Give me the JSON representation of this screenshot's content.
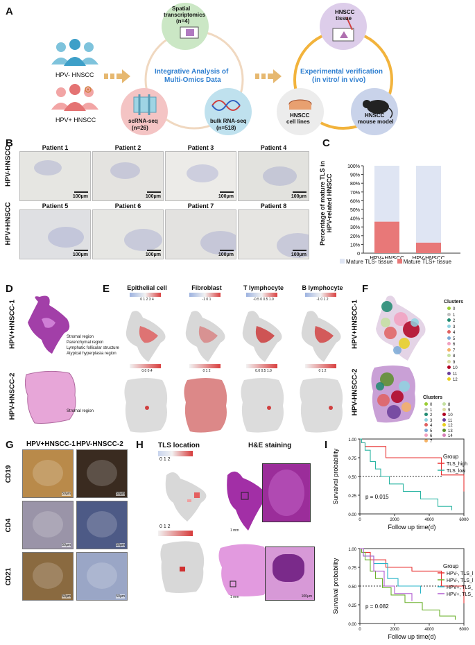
{
  "panels": {
    "A": "A",
    "B": "B",
    "C": "C",
    "D": "D",
    "E": "E",
    "F": "F",
    "G": "G",
    "H": "H",
    "I": "I"
  },
  "panelA": {
    "hpv_neg": "HPV- HNSCC",
    "hpv_pos": "HPV+ HNSCC",
    "spatial": "Spatial transcriptomics (n=4)",
    "spatial_l1": "Spatial",
    "spatial_l2": "transcriptomics",
    "spatial_l3": "(n=4)",
    "center1": "Integrative Analysis of",
    "center2": "Multi-Omics Data",
    "sc1": "scRNA-seq",
    "sc2": "(n=26)",
    "bulk1": "bulk RNA-seq",
    "bulk2": "(n=518)",
    "tissue1": "HNSCC",
    "tissue2": "tissue",
    "exp1": "Experimental verification",
    "exp2": "(in vitro/ in vivo)",
    "cell1": "HNSCC",
    "cell2": "cell lines",
    "mouse1": "HNSCC",
    "mouse2": "mouse model"
  },
  "panelB": {
    "row1": "HPV-HNSCC",
    "row2": "HPV+HNSCC",
    "patients": [
      "Patient 1",
      "Patient 2",
      "Patient 3",
      "Patient 4",
      "Patient 5",
      "Patient 6",
      "Patient 7",
      "Patient 8"
    ],
    "scale": "100μm"
  },
  "panelC": {
    "ylabel1": "Percentage of mature TLS in",
    "ylabel2": "HPV-related HNSCC",
    "legend_neg": "Mature  TLS- tissue",
    "legend_pos": "Mature  TLS+ tissue"
  },
  "chart_data": {
    "type": "bar",
    "categories": [
      "HPV+HNSCC",
      "HPV-HNSCC"
    ],
    "series": [
      {
        "name": "Mature  TLS+ tissue",
        "values": [
          36,
          12
        ]
      },
      {
        "name": "Mature  TLS- tissue",
        "values": [
          64,
          88
        ]
      }
    ],
    "ylabel": "Percentage of mature TLS in HPV-related HNSCC",
    "yticks": [
      "0",
      "10%",
      "20%",
      "30%",
      "40%",
      "50%",
      "60%",
      "70%",
      "80%",
      "90%",
      "100%"
    ],
    "ylim": [
      0,
      100
    ],
    "stacked": true,
    "colors": {
      "pos": "#e87878",
      "neg": "#dfe5f3"
    }
  },
  "panelD": {
    "row1": "HPV+HNSCC-1",
    "row2": "HPV-HNSCC-2",
    "legend1": [
      "Stromal region",
      "Parenchymal region",
      "Lymphatic follicular structure",
      "Atypical hyperplasia region"
    ],
    "legend2": [
      "Stromal region"
    ]
  },
  "panelE": {
    "titles": [
      "Epithelial cell",
      "Fibroblast",
      "T lymphocyte",
      "B lymphocyte"
    ],
    "scales_top": [
      "0  1  2  3  4",
      "-1  0  1",
      "-0.5 0 0.5 1.0",
      "-1  0  1  2"
    ],
    "scales_bottom": [
      "0.0        0.4",
      "0   1   2",
      "0.0 0.5 1.0",
      "0   1   2"
    ]
  },
  "panelF": {
    "row1": "HPV+HNSCC-1",
    "row2": "HPV-HNSCC-2",
    "clusters_label": "Clusters",
    "clusters1": [
      "0",
      "1",
      "2",
      "3",
      "4",
      "5",
      "6",
      "7",
      "8",
      "9",
      "10",
      "11",
      "12"
    ],
    "clusters2": [
      "0",
      "1",
      "2",
      "3",
      "4",
      "5",
      "6",
      "7",
      "8",
      "9",
      "10",
      "11",
      "12",
      "13",
      "14"
    ],
    "colors": [
      "#9acd32",
      "#c0c0c0",
      "#1f8a70",
      "#8fd3e0",
      "#e06060",
      "#7aa9d6",
      "#f2a0c0",
      "#f4b266",
      "#c4e0a0",
      "#d9d9a0",
      "#b00020",
      "#6a3d9a",
      "#e8d020",
      "#5b8f2a",
      "#d87fb8"
    ]
  },
  "panelG": {
    "col1": "HPV+HNSCC-1",
    "col2": "HPV-HNSCC-2",
    "rows": [
      "CD19",
      "CD4",
      "CD21"
    ],
    "scale": "50μm"
  },
  "panelH": {
    "col1": "TLS location",
    "col2": "H&E staining",
    "scale_ticks": "0    1    2",
    "bar_mm": "1 mm",
    "bar_um": "100μm"
  },
  "panelI": {
    "ylabel": "Survaival probability",
    "xlabel": "Follow up time(d)",
    "group_label": "Group",
    "plot1": {
      "p": "p = 0.015",
      "groups": [
        "TLS_high",
        "TLS_low"
      ],
      "colors": [
        "#e83030",
        "#2bb5a3"
      ]
    },
    "plot2": {
      "p": "p = 0.082",
      "groups": [
        "HPV-, TLS_high",
        "HPV-, TLS_low",
        "HPV+, TLS_high",
        "HPV+, TLS_low"
      ],
      "colors": [
        "#e83030",
        "#6ab02a",
        "#2ab5c8",
        "#b05ad0"
      ]
    },
    "xticks": [
      "0",
      "2000",
      "4000",
      "6000"
    ],
    "yticks": [
      "0.00",
      "0.25",
      "0.50",
      "0.75",
      "1.00"
    ]
  }
}
